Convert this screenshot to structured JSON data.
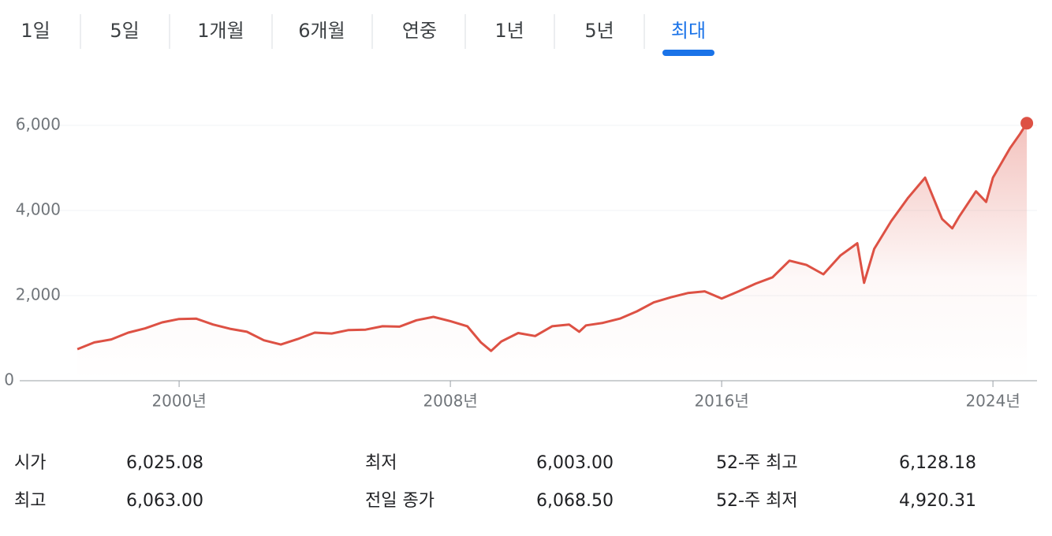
{
  "tabs": {
    "items": [
      "1일",
      "5일",
      "1개월",
      "6개월",
      "연중",
      "1년",
      "5년",
      "최대"
    ],
    "active": 7
  },
  "chart_data": {
    "type": "line",
    "color": "#dd5144",
    "x": [
      1997.0,
      1997.5,
      1998.0,
      1998.5,
      1999.0,
      1999.5,
      2000.0,
      2000.5,
      2001.0,
      2001.5,
      2002.0,
      2002.5,
      2003.0,
      2003.5,
      2004.0,
      2004.5,
      2005.0,
      2005.5,
      2006.0,
      2006.5,
      2007.0,
      2007.5,
      2008.0,
      2008.5,
      2008.9,
      2009.2,
      2009.5,
      2010.0,
      2010.5,
      2011.0,
      2011.5,
      2011.8,
      2012.0,
      2012.5,
      2013.0,
      2013.5,
      2014.0,
      2014.5,
      2015.0,
      2015.5,
      2016.0,
      2016.5,
      2017.0,
      2017.5,
      2018.0,
      2018.5,
      2019.0,
      2019.5,
      2020.0,
      2020.2,
      2020.5,
      2021.0,
      2021.5,
      2022.0,
      2022.5,
      2022.8,
      2023.0,
      2023.5,
      2023.8,
      2024.0,
      2024.5,
      2024.8,
      2025.0
    ],
    "values": [
      740,
      900,
      970,
      1130,
      1230,
      1370,
      1450,
      1460,
      1320,
      1220,
      1150,
      950,
      850,
      980,
      1130,
      1110,
      1190,
      1200,
      1280,
      1270,
      1420,
      1500,
      1400,
      1280,
      900,
      700,
      920,
      1120,
      1050,
      1280,
      1320,
      1150,
      1300,
      1360,
      1460,
      1630,
      1840,
      1960,
      2060,
      2100,
      1930,
      2100,
      2280,
      2430,
      2820,
      2720,
      2500,
      2940,
      3230,
      2300,
      3100,
      3750,
      4300,
      4770,
      3800,
      3580,
      3850,
      4450,
      4200,
      4770,
      5460,
      5800,
      6050
    ],
    "xlim": [
      1995.3,
      2025.3
    ],
    "ylim": [
      0,
      6500
    ],
    "xticks": [
      {
        "value": 2000,
        "label": "2000년"
      },
      {
        "value": 2008,
        "label": "2008년"
      },
      {
        "value": 2016,
        "label": "2016년"
      },
      {
        "value": 2024,
        "label": "2024년"
      }
    ],
    "yticks": [
      0,
      {
        "value": 2000,
        "label": "2,000"
      },
      {
        "value": 4000,
        "label": "4,000"
      },
      {
        "value": 6000,
        "label": "6,000"
      }
    ],
    "grid": true
  },
  "stats": [
    {
      "label": "시가",
      "value": "6,025.08"
    },
    {
      "label": "최저",
      "value": "6,003.00"
    },
    {
      "label": "52-주 최고",
      "value": "6,128.18"
    },
    {
      "label": "최고",
      "value": "6,063.00"
    },
    {
      "label": "전일 종가",
      "value": "6,068.50"
    },
    {
      "label": "52-주 최저",
      "value": "4,920.31"
    }
  ]
}
